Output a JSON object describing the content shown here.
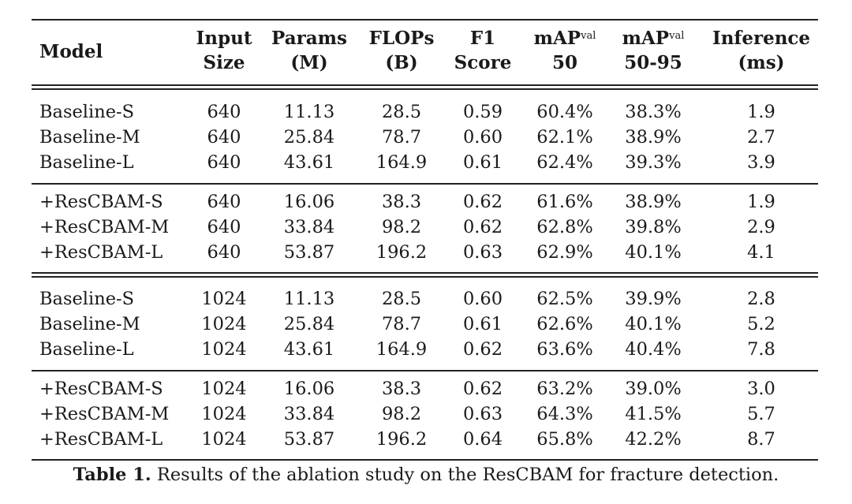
{
  "table": {
    "headers": [
      {
        "line1": "Model",
        "line2": ""
      },
      {
        "line1": "Input",
        "line2": "Size"
      },
      {
        "line1": "Params",
        "line2": "(M)"
      },
      {
        "line1": "FLOPs",
        "line2": "(B)"
      },
      {
        "line1": "F1",
        "line2": "Score"
      },
      {
        "line1": "mAP",
        "sup": "val",
        "line2": "50"
      },
      {
        "line1": "mAP",
        "sup": "val",
        "line2": "50-95"
      },
      {
        "line1": "Inference",
        "line2": "(ms)"
      }
    ],
    "groups": [
      [
        [
          "Baseline-S",
          "640",
          "11.13",
          "28.5",
          "0.59",
          "60.4%",
          "38.3%",
          "1.9"
        ],
        [
          "Baseline-M",
          "640",
          "25.84",
          "78.7",
          "0.60",
          "62.1%",
          "38.9%",
          "2.7"
        ],
        [
          "Baseline-L",
          "640",
          "43.61",
          "164.9",
          "0.61",
          "62.4%",
          "39.3%",
          "3.9"
        ]
      ],
      [
        [
          "+ResCBAM-S",
          "640",
          "16.06",
          "38.3",
          "0.62",
          "61.6%",
          "38.9%",
          "1.9"
        ],
        [
          "+ResCBAM-M",
          "640",
          "33.84",
          "98.2",
          "0.62",
          "62.8%",
          "39.8%",
          "2.9"
        ],
        [
          "+ResCBAM-L",
          "640",
          "53.87",
          "196.2",
          "0.63",
          "62.9%",
          "40.1%",
          "4.1"
        ]
      ],
      [
        [
          "Baseline-S",
          "1024",
          "11.13",
          "28.5",
          "0.60",
          "62.5%",
          "39.9%",
          "2.8"
        ],
        [
          "Baseline-M",
          "1024",
          "25.84",
          "78.7",
          "0.61",
          "62.6%",
          "40.1%",
          "5.2"
        ],
        [
          "Baseline-L",
          "1024",
          "43.61",
          "164.9",
          "0.62",
          "63.6%",
          "40.4%",
          "7.8"
        ]
      ],
      [
        [
          "+ResCBAM-S",
          "1024",
          "16.06",
          "38.3",
          "0.62",
          "63.2%",
          "39.0%",
          "3.0"
        ],
        [
          "+ResCBAM-M",
          "1024",
          "33.84",
          "98.2",
          "0.63",
          "64.3%",
          "41.5%",
          "5.7"
        ],
        [
          "+ResCBAM-L",
          "1024",
          "53.87",
          "196.2",
          "0.64",
          "65.8%",
          "42.2%",
          "8.7"
        ]
      ]
    ]
  },
  "caption": {
    "label": "Table 1.",
    "text": "Results of the ablation study on the ResCBAM for fracture detection."
  }
}
